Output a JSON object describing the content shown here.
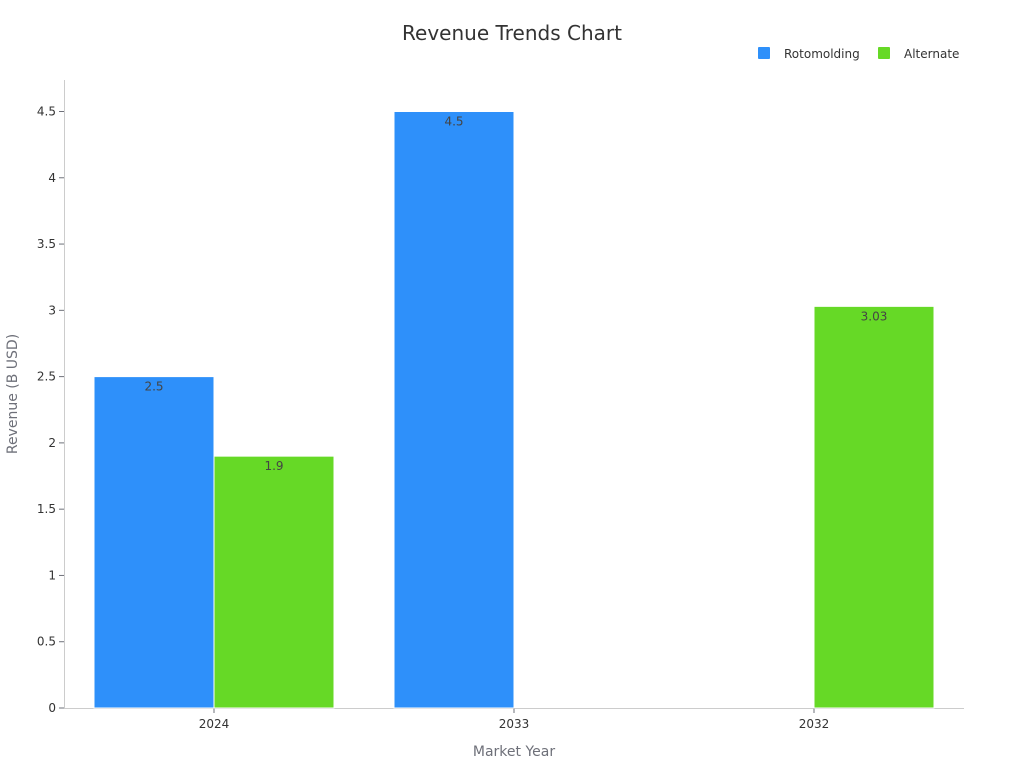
{
  "chart_data": {
    "type": "bar",
    "title": "Revenue Trends Chart",
    "xlabel": "Market Year",
    "ylabel": "Revenue (B USD)",
    "categories": [
      "2024",
      "2033",
      "2032"
    ],
    "ylim": [
      0,
      4.5
    ],
    "yticks": [
      "0",
      "0.5",
      "1",
      "1.5",
      "2",
      "2.5",
      "3",
      "3.5",
      "4",
      "4.5"
    ],
    "grid": false,
    "legend_position": "top-right",
    "series": [
      {
        "name": "Rotomolding",
        "color": "#2e90fa",
        "values": [
          2.5,
          4.5,
          null
        ],
        "labels": [
          "2.5",
          "4.5",
          ""
        ]
      },
      {
        "name": "Alternate",
        "color": "#66d926",
        "values": [
          1.9,
          null,
          3.03
        ],
        "labels": [
          "1.9",
          "",
          "3.03"
        ]
      }
    ]
  }
}
